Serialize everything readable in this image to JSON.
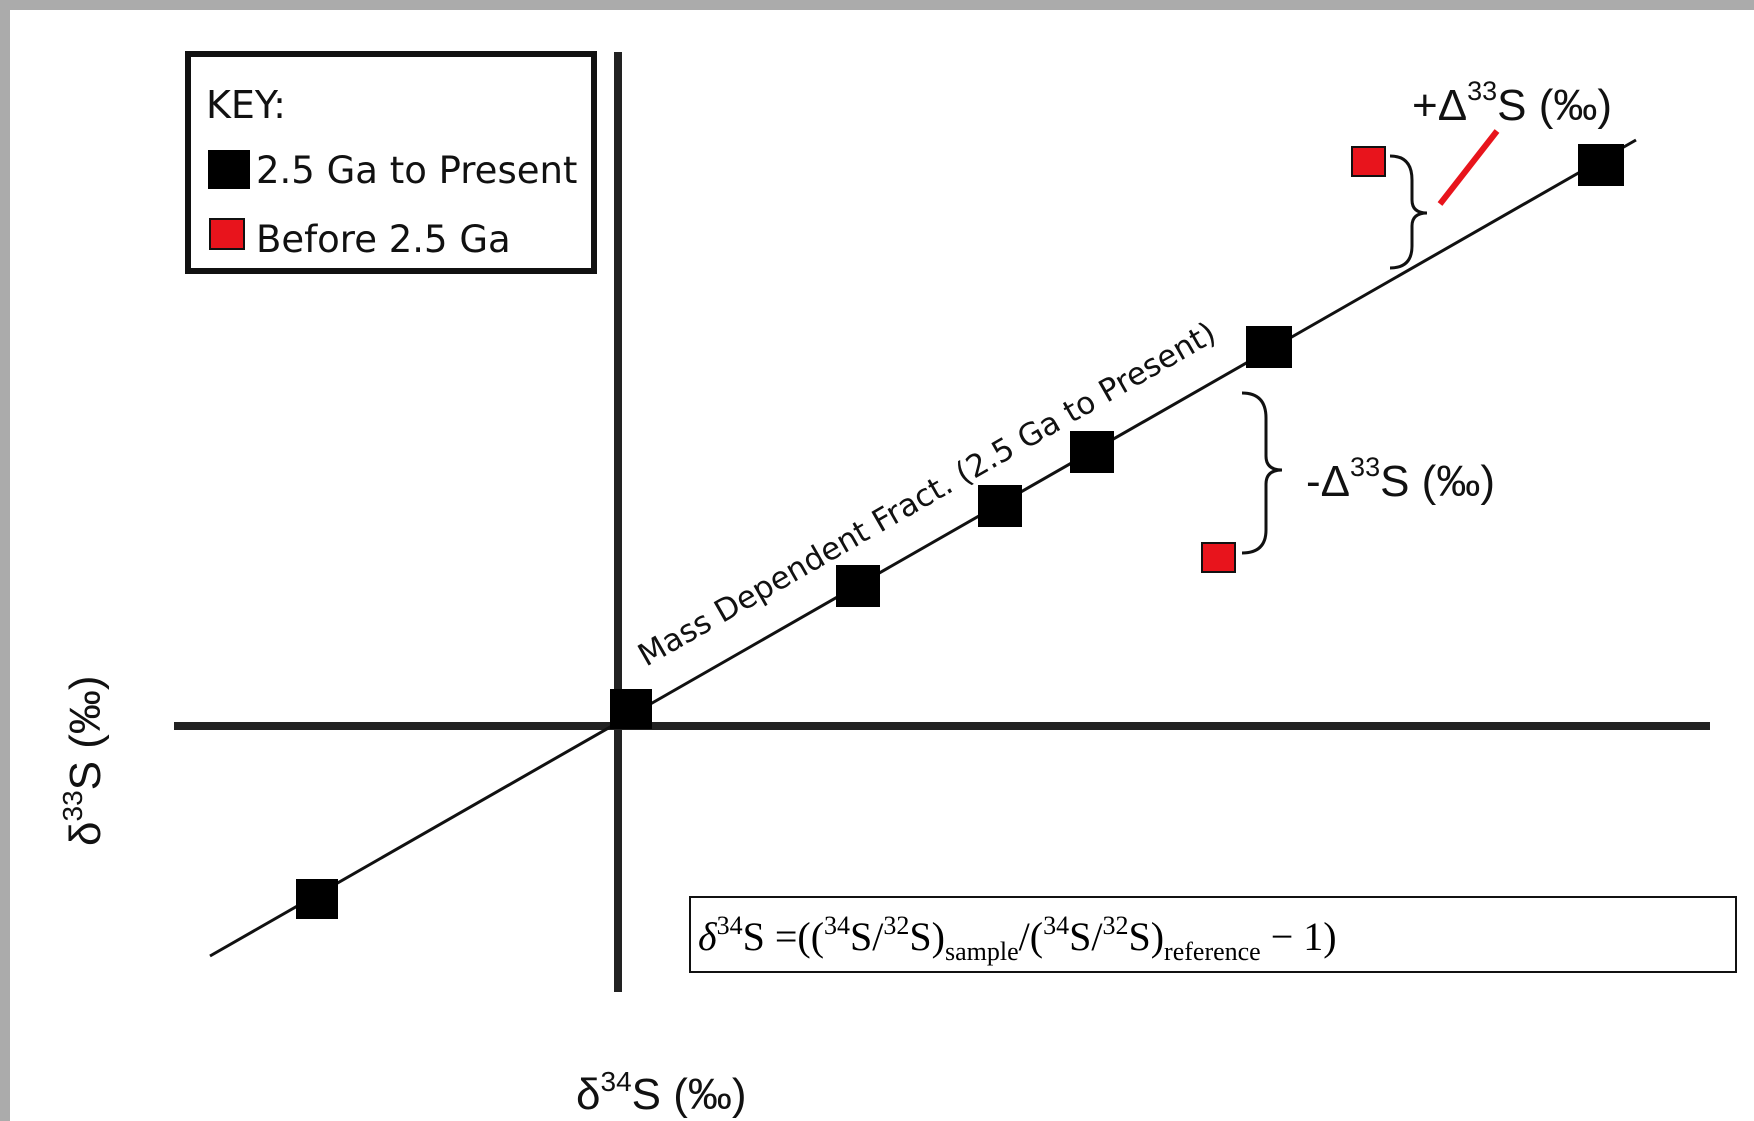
{
  "key": {
    "title": "KEY:",
    "items": [
      {
        "label": "2.5 Ga to Present",
        "color": "#000000",
        "series": "black"
      },
      {
        "label": "Before 2.5 Ga",
        "color": "#e8141c",
        "series": "red"
      }
    ]
  },
  "line_label": "Mass Dependent Fract. (2.5 Ga to Present)",
  "axes": {
    "x_label": {
      "prefix": "δ",
      "sup": "34",
      "rest": "S (‰)"
    },
    "y_label": {
      "prefix": "δ",
      "sup": "33",
      "rest": "S (‰)"
    }
  },
  "annotations": {
    "positive": {
      "prefix": "+Δ",
      "sup": "33",
      "rest": "S (‰)",
      "leader_color": "#e8141c"
    },
    "negative": {
      "prefix": "-Δ",
      "sup": "33",
      "rest": "S (‰)"
    }
  },
  "formula": {
    "delta": "δ",
    "iso_34": "34",
    "iso_32": "32",
    "S": "S",
    "eq": " =((",
    "slash": "/(",
    "close": ")",
    "sample": "sample",
    "reference": "reference",
    "mid": "/(",
    "tail": " − 1)"
  },
  "colors": {
    "background": "#ababab",
    "panel": "#ffffff",
    "axis": "#222222",
    "black_marker": "#000000",
    "red_marker": "#e8141c"
  }
}
